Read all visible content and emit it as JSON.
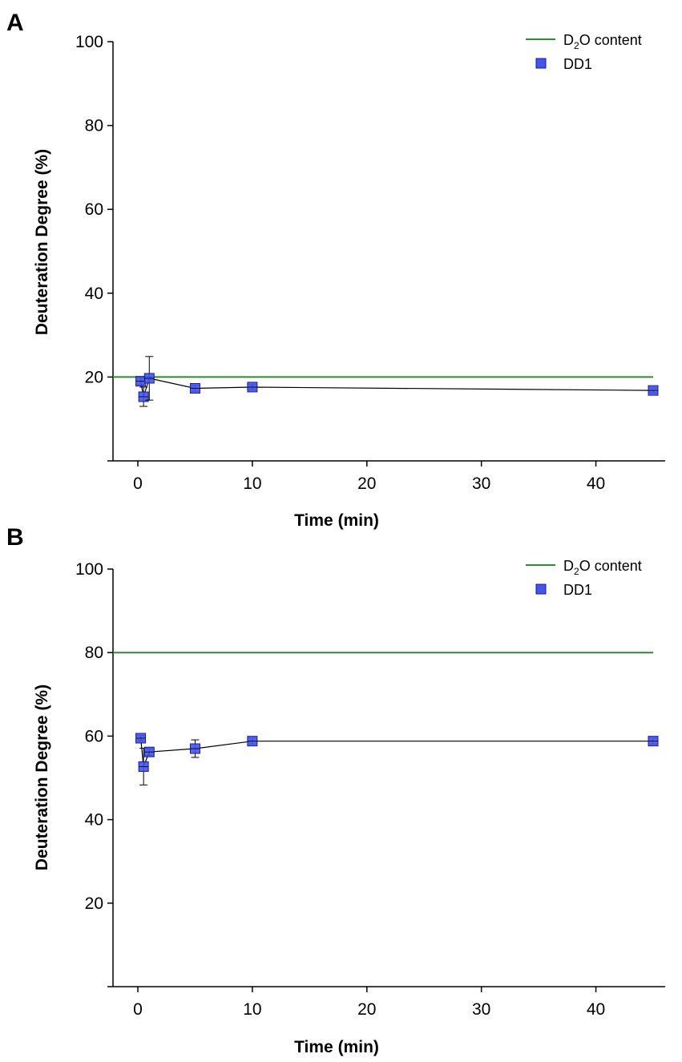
{
  "chart_data": [
    {
      "panel": "A",
      "type": "line",
      "xlabel": "Time (min)",
      "ylabel": "Deuteration Degree (%)",
      "xlim": [
        -2,
        46.5
      ],
      "ylim": [
        0,
        100
      ],
      "xticks": [
        0,
        10,
        20,
        30,
        40
      ],
      "yticks": [
        20,
        40,
        60,
        80,
        100
      ],
      "minor_yticks": [
        0
      ],
      "legend_position": "top-right",
      "reference_line": {
        "name": "D₂O content",
        "legend_main": "D",
        "legend_sub": "2",
        "legend_rest": "O content",
        "y": 20,
        "x_range": [
          -2,
          45
        ],
        "color": "#2e8b2e"
      },
      "series": [
        {
          "name": "DD1",
          "color": "#4455ee",
          "x": [
            0.25,
            0.5,
            1,
            5,
            10,
            45
          ],
          "y": [
            19,
            15.3,
            19.7,
            17.3,
            17.6,
            16.8
          ],
          "err": [
            0.8,
            2.3,
            5.2,
            0.7,
            0.6,
            0.6
          ]
        }
      ]
    },
    {
      "panel": "B",
      "type": "line",
      "xlabel": "Time (min)",
      "ylabel": "Deuteration Degree (%)",
      "xlim": [
        -2,
        46.5
      ],
      "ylim": [
        0,
        100
      ],
      "xticks": [
        0,
        10,
        20,
        30,
        40
      ],
      "yticks": [
        20,
        40,
        60,
        80,
        100
      ],
      "minor_yticks": [
        0
      ],
      "legend_position": "top-right",
      "reference_line": {
        "name": "D₂O content",
        "legend_main": "D",
        "legend_sub": "2",
        "legend_rest": "O content",
        "y": 80,
        "x_range": [
          -2,
          45
        ],
        "color": "#2e8b2e"
      },
      "series": [
        {
          "name": "DD1",
          "color": "#4455ee",
          "x": [
            0.25,
            0.5,
            1,
            5,
            10,
            45
          ],
          "y": [
            59.5,
            52.7,
            56.2,
            57,
            58.8,
            58.8
          ],
          "err": [
            0.6,
            4.4,
            0.8,
            2.1,
            0.7,
            0.7
          ]
        }
      ]
    }
  ]
}
